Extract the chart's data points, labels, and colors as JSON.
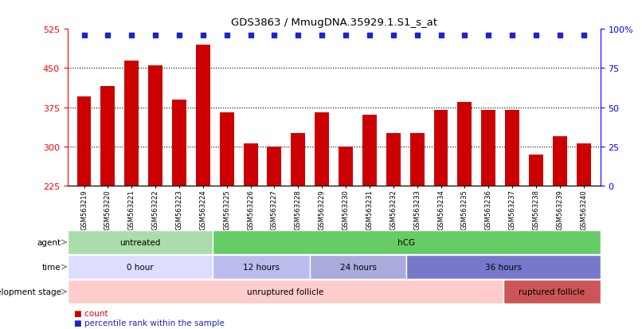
{
  "title": "GDS3863 / MmugDNA.35929.1.S1_s_at",
  "samples": [
    "GSM563219",
    "GSM563220",
    "GSM563221",
    "GSM563222",
    "GSM563223",
    "GSM563224",
    "GSM563225",
    "GSM563226",
    "GSM563227",
    "GSM563228",
    "GSM563229",
    "GSM563230",
    "GSM563231",
    "GSM563232",
    "GSM563233",
    "GSM563234",
    "GSM563235",
    "GSM563236",
    "GSM563237",
    "GSM563238",
    "GSM563239",
    "GSM563240"
  ],
  "counts": [
    395,
    415,
    465,
    455,
    390,
    495,
    365,
    305,
    300,
    325,
    365,
    300,
    360,
    325,
    325,
    370,
    385,
    370,
    370,
    285,
    320,
    305
  ],
  "bar_color": "#cc0000",
  "percentile_color": "#2222cc",
  "ylim_left": [
    225,
    525
  ],
  "ylim_right": [
    0,
    100
  ],
  "yticks_left": [
    225,
    300,
    375,
    450,
    525
  ],
  "yticks_right": [
    0,
    25,
    50,
    75,
    100
  ],
  "grid_values": [
    300,
    375,
    450
  ],
  "agent_row": {
    "label": "agent",
    "segments": [
      {
        "text": "untreated",
        "start": 0,
        "end": 6,
        "color": "#aaddaa"
      },
      {
        "text": "hCG",
        "start": 6,
        "end": 22,
        "color": "#66cc66"
      }
    ]
  },
  "time_row": {
    "label": "time",
    "segments": [
      {
        "text": "0 hour",
        "start": 0,
        "end": 6,
        "color": "#ddddff"
      },
      {
        "text": "12 hours",
        "start": 6,
        "end": 10,
        "color": "#bbbbee"
      },
      {
        "text": "24 hours",
        "start": 10,
        "end": 14,
        "color": "#aaaadd"
      },
      {
        "text": "36 hours",
        "start": 14,
        "end": 22,
        "color": "#7777cc"
      }
    ]
  },
  "dev_row": {
    "label": "development stage",
    "segments": [
      {
        "text": "unruptured follicle",
        "start": 0,
        "end": 18,
        "color": "#ffcccc"
      },
      {
        "text": "ruptured follicle",
        "start": 18,
        "end": 22,
        "color": "#cc5555"
      }
    ]
  },
  "legend_count_color": "#cc0000",
  "legend_percentile_color": "#2222cc",
  "background_color": "#ffffff"
}
